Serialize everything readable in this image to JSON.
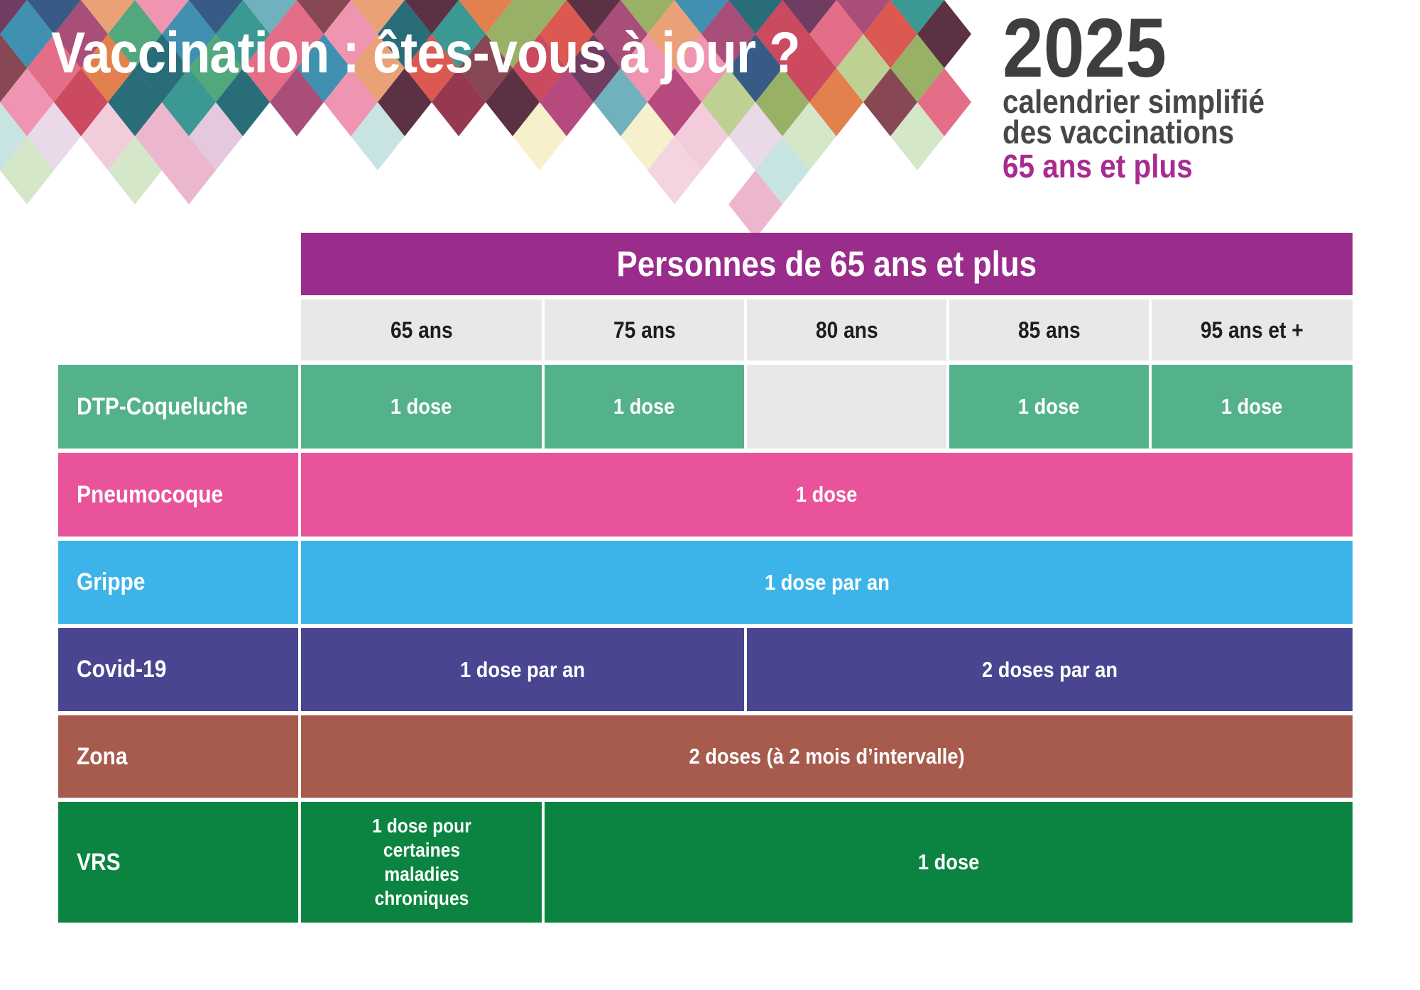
{
  "header": {
    "title": "Vaccination : êtes-vous à jour ?",
    "year": "2025",
    "subtitle_line1": "calendrier simplifié",
    "subtitle_line2": "des vaccinations",
    "audience": "65 ans et plus",
    "colors": {
      "title_text": "#ffffff",
      "year_text": "#3f3e3e",
      "subtitle_text": "#474747",
      "audience_text": "#a82b8f"
    },
    "mosaic_palette": [
      "#2a8f8a",
      "#16606e",
      "#d84b41",
      "#c73a52",
      "#e2607e",
      "#ef8cab",
      "#a23f6d",
      "#8e2742",
      "#642b53",
      "#274d7c",
      "#2f86ac",
      "#65aab8",
      "#e1763f",
      "#e9996b",
      "#90ab59",
      "#b9cd8a",
      "#42a171",
      "#7d3744",
      "#4d1f33",
      "#b03a74"
    ],
    "mosaic_palette_pale": [
      "#f1c3d6",
      "#e9aac6",
      "#dfc0d8",
      "#f5dce8",
      "#f6eec3",
      "#cde3c0",
      "#bfe0dd",
      "#e7d3e4",
      "#f3cdd9"
    ]
  },
  "table": {
    "group_header": "Personnes de 65 ans et plus",
    "group_header_color": "#9a2c8c",
    "empty_cell_color": "#e9e8e8",
    "age_header_bg": "#e9e8e8",
    "age_header_text_color": "#1d1d1b",
    "age_columns": [
      "65 ans",
      "75 ans",
      "80 ans",
      "85 ans",
      "95 ans et +"
    ],
    "rows": [
      {
        "label": "DTP-Coqueluche",
        "color": "#54b28b",
        "cells": [
          {
            "text": "1 dose",
            "span": 1,
            "filled": true
          },
          {
            "text": "1 dose",
            "span": 1,
            "filled": true
          },
          {
            "text": "",
            "span": 1,
            "filled": false
          },
          {
            "text": "1 dose",
            "span": 1,
            "filled": true
          },
          {
            "text": "1 dose",
            "span": 1,
            "filled": true
          }
        ]
      },
      {
        "label": "Pneumocoque",
        "color": "#e9539a",
        "cells": [
          {
            "text": "1 dose",
            "span": 5,
            "filled": true
          }
        ]
      },
      {
        "label": "Grippe",
        "color": "#3cb4e9",
        "cells": [
          {
            "text": "1 dose par an",
            "span": 5,
            "filled": true
          }
        ]
      },
      {
        "label": "Covid-19",
        "color": "#4a4591",
        "cells": [
          {
            "text": "1 dose par an",
            "span": 2,
            "filled": true
          },
          {
            "text": "2 doses par an",
            "span": 3,
            "filled": true
          }
        ]
      },
      {
        "label": "Zona",
        "color": "#a65b4d",
        "cells": [
          {
            "text": "2 doses (à 2 mois d’intervalle)",
            "span": 5,
            "filled": true
          }
        ]
      },
      {
        "label": "VRS",
        "color": "#0a8440",
        "cells": [
          {
            "text": "1 dose pour certaines maladies chroniques",
            "span": 1,
            "filled": true,
            "multiline": true
          },
          {
            "text": "1 dose",
            "span": 4,
            "filled": true
          }
        ]
      }
    ]
  }
}
